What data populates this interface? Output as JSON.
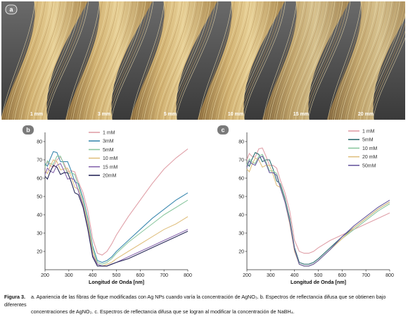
{
  "photo": {
    "badge": "a",
    "labels": [
      "1 mm",
      "3 mm",
      "5 mm",
      "10 mm",
      "15 mm",
      "20 mm"
    ]
  },
  "chart_data": [
    {
      "type": "line",
      "badge": "b",
      "xlabel": "Longitud de Onda [nm]",
      "ylabel": "",
      "xlim": [
        200,
        800
      ],
      "ylim": [
        10,
        85
      ],
      "xticks": [
        200,
        300,
        400,
        500,
        600,
        700,
        800
      ],
      "yticks": [
        20,
        30,
        40,
        50,
        60,
        70,
        80
      ],
      "legend_position": "top-right",
      "series": [
        {
          "name": "1 mM",
          "color": "#e0a0a8",
          "x": [
            200,
            220,
            250,
            280,
            310,
            340,
            360,
            380,
            400,
            420,
            440,
            460,
            480,
            500,
            550,
            600,
            650,
            700,
            750,
            800
          ],
          "y": [
            66,
            67,
            70,
            68,
            64,
            58,
            52,
            42,
            27,
            19,
            18,
            20,
            24,
            29,
            39,
            48,
            57,
            65,
            71,
            76
          ]
        },
        {
          "name": "3mM",
          "color": "#3d8ab0",
          "x": [
            200,
            220,
            250,
            280,
            310,
            340,
            360,
            380,
            400,
            420,
            440,
            460,
            480,
            500,
            550,
            600,
            650,
            700,
            750,
            800
          ],
          "y": [
            68,
            70,
            74,
            69,
            64,
            57,
            49,
            38,
            23,
            15,
            14,
            15,
            17,
            20,
            26,
            32,
            38,
            43,
            48,
            52
          ]
        },
        {
          "name": "5mM",
          "color": "#8cc8a0",
          "x": [
            200,
            220,
            250,
            280,
            310,
            340,
            360,
            380,
            400,
            420,
            440,
            460,
            480,
            500,
            550,
            600,
            650,
            700,
            750,
            800
          ],
          "y": [
            66,
            68,
            72,
            67,
            63,
            56,
            48,
            37,
            22,
            14,
            13,
            14,
            16,
            19,
            25,
            30,
            35,
            40,
            44,
            48
          ]
        },
        {
          "name": "10 mM",
          "color": "#e0c080",
          "x": [
            200,
            220,
            250,
            280,
            310,
            340,
            360,
            380,
            400,
            420,
            440,
            460,
            480,
            500,
            550,
            600,
            650,
            700,
            750,
            800
          ],
          "y": [
            64,
            66,
            69,
            65,
            61,
            54,
            46,
            35,
            20,
            13,
            12,
            13,
            14,
            16,
            20,
            24,
            28,
            32,
            35,
            39
          ]
        },
        {
          "name": "15 mM",
          "color": "#8a6ab0",
          "x": [
            200,
            220,
            250,
            280,
            310,
            340,
            360,
            380,
            400,
            420,
            440,
            460,
            480,
            500,
            550,
            600,
            650,
            700,
            750,
            800
          ],
          "y": [
            62,
            64,
            67,
            64,
            60,
            53,
            45,
            33,
            18,
            13,
            12,
            12,
            13,
            14,
            17,
            20,
            23,
            26,
            29,
            32
          ]
        },
        {
          "name": "20mM",
          "color": "#2a2a5a",
          "x": [
            200,
            220,
            250,
            280,
            310,
            340,
            360,
            380,
            400,
            420,
            440,
            460,
            480,
            500,
            550,
            600,
            650,
            700,
            750,
            800
          ],
          "y": [
            61,
            63,
            66,
            63,
            58,
            51,
            44,
            32,
            17,
            12,
            12,
            12,
            13,
            14,
            16,
            19,
            22,
            25,
            28,
            31
          ]
        }
      ]
    },
    {
      "type": "line",
      "badge": "c",
      "xlabel": "Longitud de Onda [nm]",
      "ylabel": "",
      "xlim": [
        200,
        800
      ],
      "ylim": [
        10,
        85
      ],
      "xticks": [
        200,
        300,
        400,
        500,
        600,
        700,
        800
      ],
      "yticks": [
        20,
        30,
        40,
        50,
        60,
        70,
        80
      ],
      "legend_position": "top-right",
      "series": [
        {
          "name": "1 mM",
          "color": "#e0a0a8",
          "x": [
            200,
            220,
            250,
            280,
            310,
            340,
            360,
            380,
            400,
            420,
            440,
            460,
            480,
            500,
            550,
            600,
            650,
            700,
            750,
            800
          ],
          "y": [
            70,
            72,
            76,
            72,
            67,
            59,
            52,
            42,
            26,
            20,
            19,
            19,
            20,
            22,
            26,
            29,
            32,
            35,
            38,
            41
          ]
        },
        {
          "name": "5mM",
          "color": "#2e6e70",
          "x": [
            200,
            220,
            250,
            280,
            310,
            340,
            360,
            380,
            400,
            420,
            440,
            460,
            480,
            500,
            550,
            600,
            650,
            700,
            750,
            800
          ],
          "y": [
            68,
            70,
            73,
            70,
            65,
            57,
            49,
            38,
            22,
            14,
            13,
            13,
            14,
            16,
            22,
            28,
            33,
            38,
            43,
            47
          ]
        },
        {
          "name": "10 mM",
          "color": "#8cc8a0",
          "x": [
            200,
            220,
            250,
            280,
            310,
            340,
            360,
            380,
            400,
            420,
            440,
            460,
            480,
            500,
            550,
            600,
            650,
            700,
            750,
            800
          ],
          "y": [
            67,
            69,
            72,
            69,
            64,
            56,
            48,
            37,
            21,
            13,
            12,
            12,
            13,
            15,
            21,
            27,
            32,
            37,
            42,
            46
          ]
        },
        {
          "name": "20 mM",
          "color": "#e0c080",
          "x": [
            200,
            220,
            250,
            280,
            310,
            340,
            360,
            380,
            400,
            420,
            440,
            460,
            480,
            500,
            550,
            600,
            650,
            700,
            750,
            800
          ],
          "y": [
            65,
            67,
            70,
            67,
            62,
            55,
            47,
            35,
            20,
            13,
            12,
            12,
            13,
            15,
            21,
            27,
            33,
            38,
            43,
            47
          ]
        },
        {
          "name": "50mM",
          "color": "#6a5aa0",
          "x": [
            200,
            220,
            250,
            280,
            310,
            340,
            360,
            380,
            400,
            420,
            440,
            460,
            480,
            500,
            550,
            600,
            650,
            700,
            750,
            800
          ],
          "y": [
            66,
            68,
            71,
            68,
            63,
            55,
            47,
            36,
            21,
            13,
            12,
            12,
            13,
            15,
            21,
            28,
            34,
            39,
            44,
            48
          ]
        }
      ]
    }
  ],
  "caption": {
    "label": "Figura 3.",
    "line1": "a. Apariencia de las fibras de fique modificadas con Ag NPs cuando varía la concentración de AgNO₃. b. Espectros de reflectancia difusa que se obtienen bajo diferentes",
    "line2": "concentraciones de AgNO₃. c. Espectros de reflectancia difusa que se logran al modificar la concentración de NaBH₄."
  },
  "colors": {
    "badge": "#7a7a7a",
    "photo_background": "#5a5a5a",
    "fiber_light": "#e6c98a",
    "fiber_dark": "#9a7a45"
  }
}
